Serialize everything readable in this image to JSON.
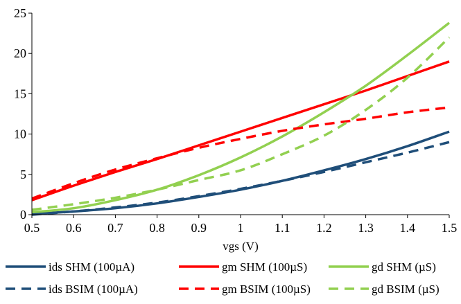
{
  "chart_data": {
    "type": "line",
    "title": "",
    "xlabel": "vgs (V)",
    "ylabel": "",
    "xlim": [
      0.5,
      1.5
    ],
    "ylim": [
      0,
      25
    ],
    "grid": false,
    "legend_position": "bottom",
    "x_ticks": [
      "0.5",
      "0.6",
      "0.7",
      "0.8",
      "0.9",
      "1",
      "1.1",
      "1.2",
      "1.3",
      "1.4",
      "1.5"
    ],
    "y_ticks": [
      "0",
      "5",
      "10",
      "15",
      "20",
      "25"
    ],
    "x": [
      0.5,
      0.6,
      0.7,
      0.8,
      0.9,
      1.0,
      1.1,
      1.2,
      1.3,
      1.4,
      1.5
    ],
    "series": [
      {
        "name": "ids SHM (100µA)",
        "color": "#1f4e79",
        "dash": "solid",
        "values": [
          0.1,
          0.4,
          0.8,
          1.4,
          2.2,
          3.1,
          4.2,
          5.5,
          6.9,
          8.5,
          10.3
        ]
      },
      {
        "name": "gm SHM (100µS)",
        "color": "#ff0000",
        "dash": "solid",
        "values": [
          1.8,
          3.6,
          5.3,
          6.9,
          8.6,
          10.3,
          12.0,
          13.7,
          15.4,
          17.2,
          19.0
        ]
      },
      {
        "name": "gd SHM (µS)",
        "color": "#92d050",
        "dash": "solid",
        "values": [
          0.3,
          0.8,
          1.8,
          3.1,
          4.9,
          7.1,
          9.7,
          12.7,
          16.0,
          19.8,
          23.8
        ]
      },
      {
        "name": "ids BSIM (100µA)",
        "color": "#1f4e79",
        "dash": "dashed",
        "values": [
          0.0,
          0.4,
          0.9,
          1.5,
          2.3,
          3.2,
          4.2,
          5.3,
          6.5,
          7.7,
          9.0
        ]
      },
      {
        "name": "gm BSIM (100µS)",
        "color": "#ff0000",
        "dash": "dashed",
        "values": [
          2.0,
          3.9,
          5.6,
          7.0,
          8.3,
          9.4,
          10.4,
          11.2,
          11.9,
          12.7,
          13.3
        ]
      },
      {
        "name": "gd BSIM (µS)",
        "color": "#92d050",
        "dash": "dashed",
        "values": [
          0.6,
          1.3,
          2.1,
          3.1,
          4.3,
          5.5,
          7.5,
          9.8,
          13.0,
          17.0,
          22.0
        ]
      }
    ]
  }
}
